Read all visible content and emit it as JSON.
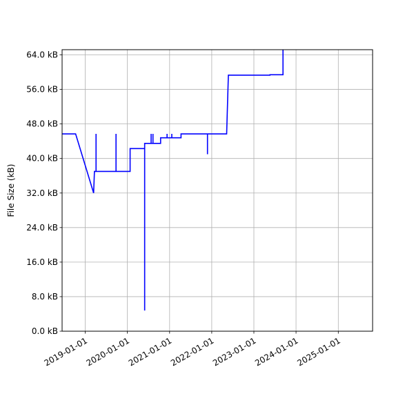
{
  "chart_data": {
    "type": "line",
    "title": "",
    "xlabel": "",
    "ylabel": "File Size (kB)",
    "grid": true,
    "legend": "none",
    "xlim": [
      "2018-06-15",
      "2025-10-25"
    ],
    "ylim": [
      0,
      65.2
    ],
    "x_ticks": [
      "2019-01-01",
      "2020-01-01",
      "2021-01-01",
      "2022-01-01",
      "2023-01-01",
      "2024-01-01",
      "2025-01-01"
    ],
    "y_ticks": [
      0,
      8,
      16,
      24,
      32,
      40,
      48,
      56,
      64
    ],
    "y_tick_labels": [
      "0.0 kB",
      "8.0 kB",
      "16.0 kB",
      "24.0 kB",
      "32.0 kB",
      "40.0 kB",
      "48.0 kB",
      "56.0 kB",
      "64.0 kB"
    ],
    "series": [
      {
        "color": "#0000ff",
        "points": [
          [
            "2018-06-15",
            45.7
          ],
          [
            "2018-10-10",
            45.7
          ],
          [
            "2019-03-15",
            32.0
          ],
          [
            "2019-03-22",
            37.0
          ],
          [
            "2019-04-05",
            37.0
          ],
          [
            "2019-04-05",
            45.7
          ],
          [
            "2019-04-05",
            37.0
          ],
          [
            "2019-09-25",
            37.0
          ],
          [
            "2019-09-25",
            45.7
          ],
          [
            "2019-09-25",
            37.0
          ],
          [
            "2020-01-25",
            37.0
          ],
          [
            "2020-01-25",
            42.3
          ],
          [
            "2020-05-30",
            42.3
          ],
          [
            "2020-05-30",
            4.8
          ],
          [
            "2020-05-30",
            43.5
          ],
          [
            "2020-07-25",
            43.5
          ],
          [
            "2020-07-25",
            45.7
          ],
          [
            "2020-07-25",
            43.5
          ],
          [
            "2020-08-10",
            43.5
          ],
          [
            "2020-08-10",
            45.7
          ],
          [
            "2020-08-10",
            43.5
          ],
          [
            "2020-10-15",
            43.5
          ],
          [
            "2020-10-15",
            44.8
          ],
          [
            "2020-12-10",
            44.8
          ],
          [
            "2020-12-10",
            45.7
          ],
          [
            "2020-12-10",
            44.8
          ],
          [
            "2021-01-20",
            44.8
          ],
          [
            "2021-01-20",
            45.7
          ],
          [
            "2021-01-20",
            44.8
          ],
          [
            "2021-04-10",
            44.8
          ],
          [
            "2021-04-10",
            45.7
          ],
          [
            "2021-11-25",
            45.7
          ],
          [
            "2021-11-25",
            41.0
          ],
          [
            "2021-11-25",
            45.7
          ],
          [
            "2022-05-10",
            45.7
          ],
          [
            "2022-05-25",
            59.3
          ],
          [
            "2023-05-20",
            59.3
          ],
          [
            "2023-05-20",
            59.4
          ],
          [
            "2023-09-10",
            59.4
          ],
          [
            "2023-09-10",
            65.2
          ]
        ]
      }
    ]
  }
}
